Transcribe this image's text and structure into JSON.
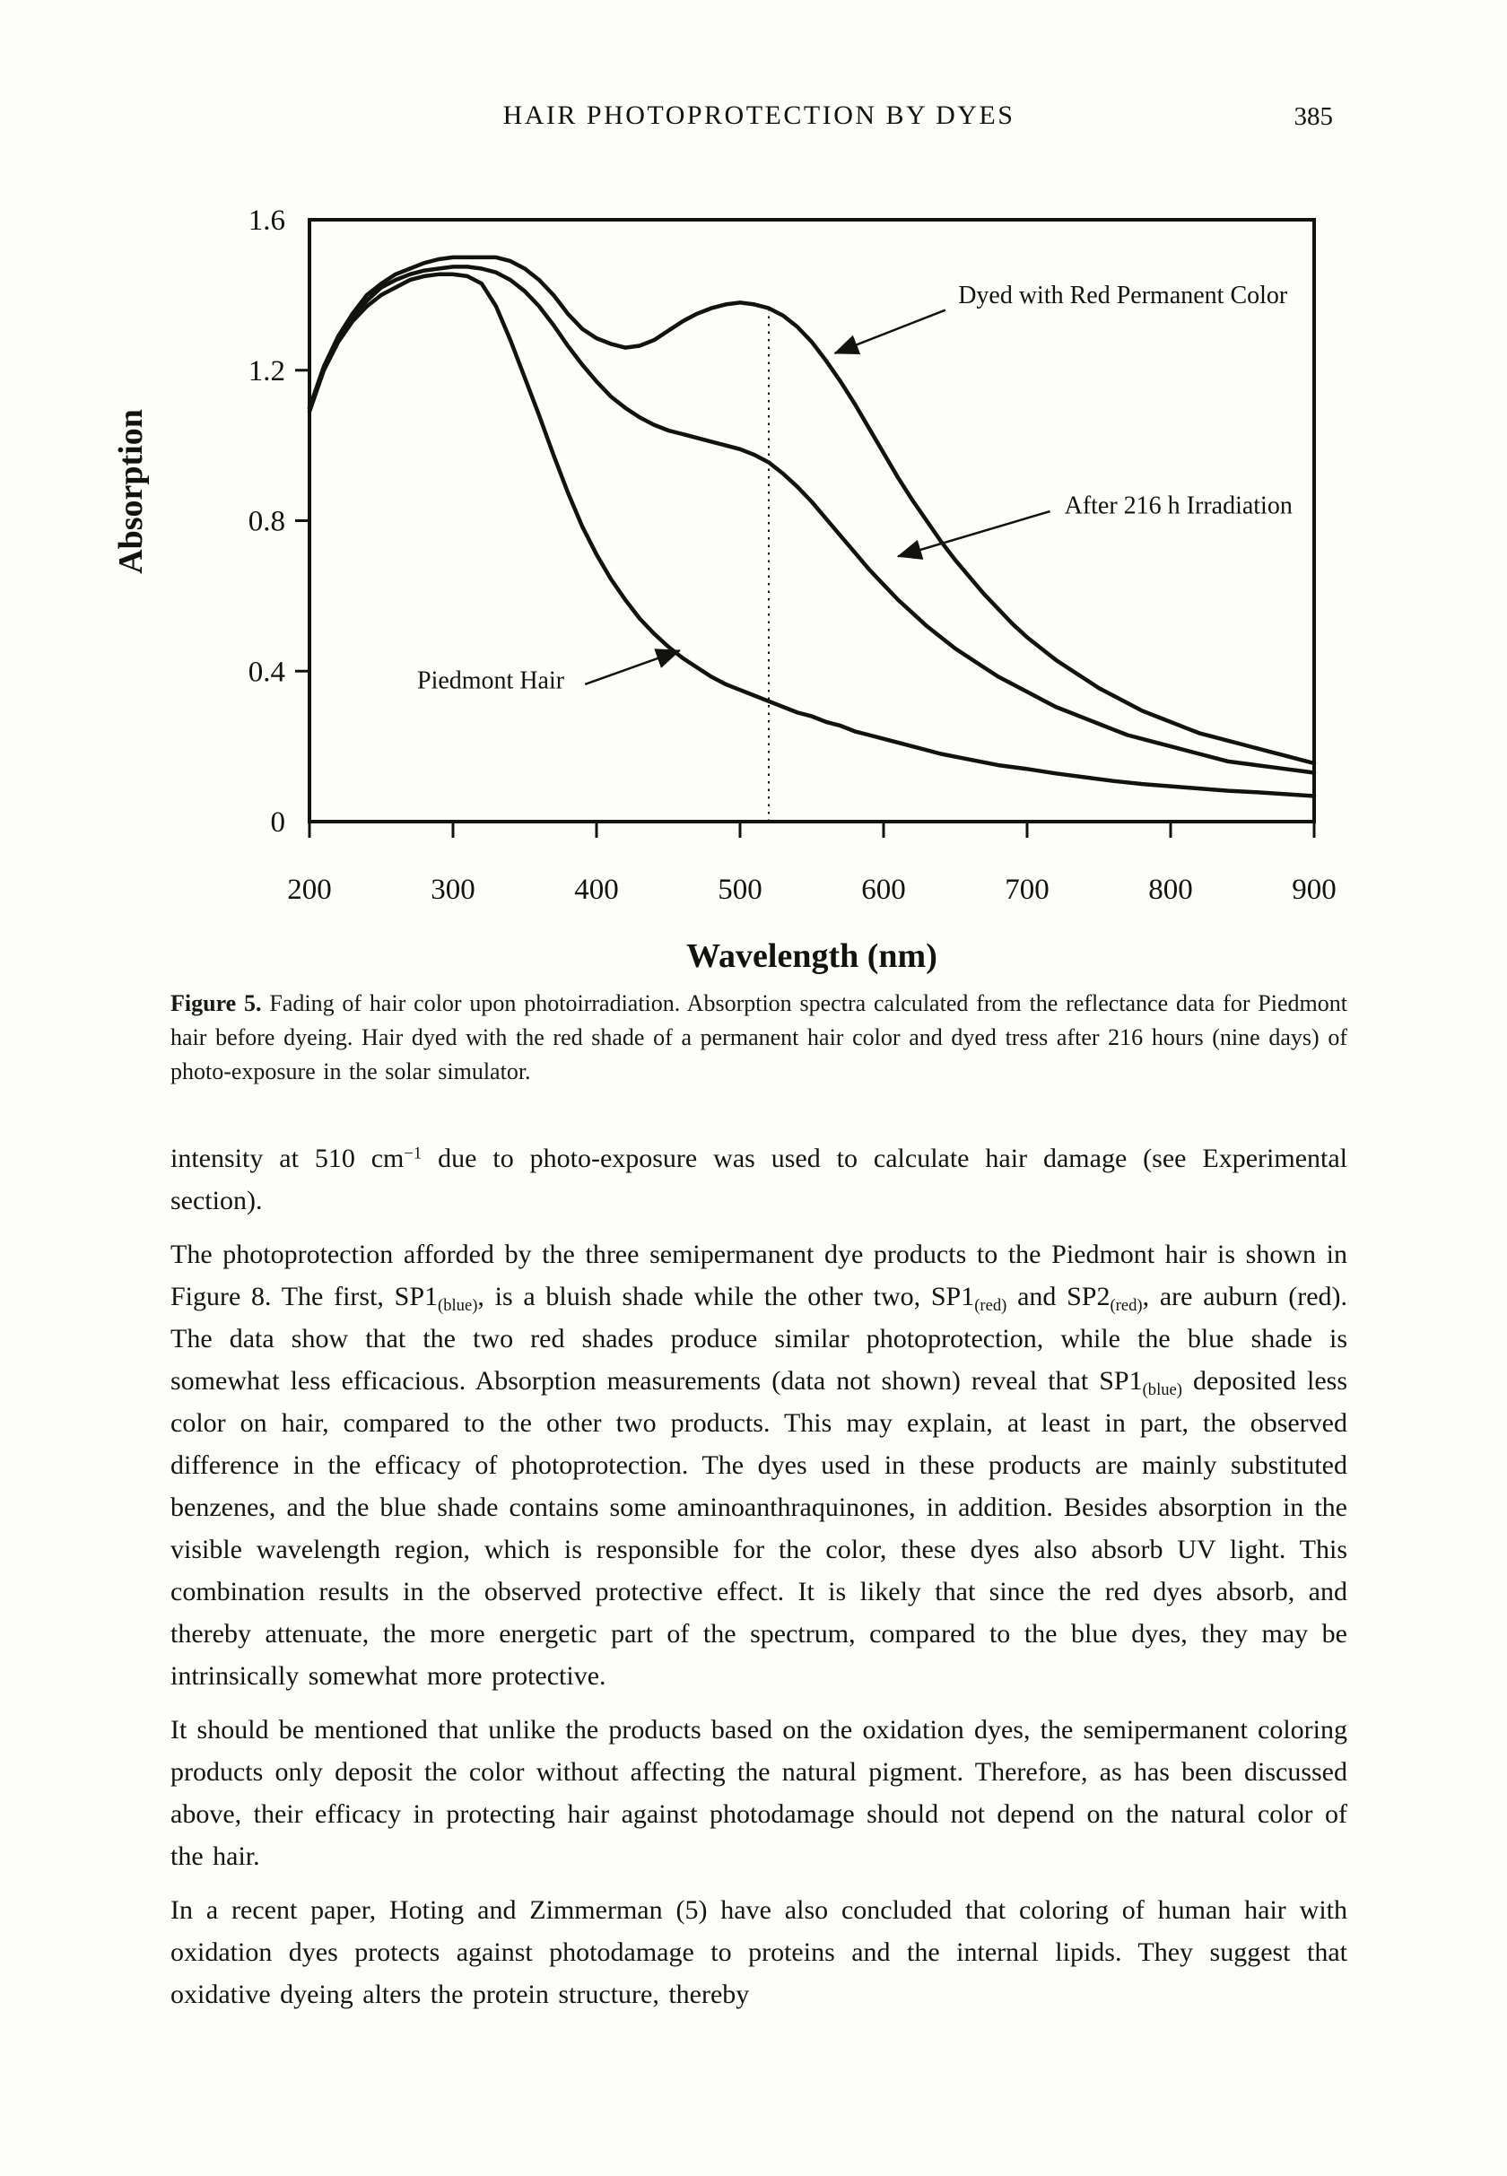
{
  "header": {
    "title": "HAIR PHOTOPROTECTION BY DYES",
    "page_number": "385"
  },
  "chart_data": {
    "type": "line",
    "title": "",
    "xlabel": "Wavelength (nm)",
    "ylabel": "Absorption",
    "xlim": [
      200,
      900
    ],
    "ylim": [
      0,
      1.6
    ],
    "xticks": [
      200,
      300,
      400,
      500,
      600,
      700,
      800,
      900
    ],
    "yticks": [
      0,
      0.4,
      0.8,
      1.2,
      1.6
    ],
    "ytick_labels": [
      "0",
      "0.4",
      "0.8",
      "1.2",
      "1.6"
    ],
    "grid": false,
    "legend_position": "none",
    "vline": {
      "x": 520,
      "y_bottom": 0,
      "y_top": 1.36,
      "style": "dotted"
    },
    "series": [
      {
        "name": "Dyed with Red Permanent Color",
        "points": [
          [
            200,
            1.1
          ],
          [
            210,
            1.21
          ],
          [
            220,
            1.29
          ],
          [
            230,
            1.35
          ],
          [
            240,
            1.4
          ],
          [
            250,
            1.43
          ],
          [
            260,
            1.455
          ],
          [
            270,
            1.47
          ],
          [
            280,
            1.485
          ],
          [
            290,
            1.495
          ],
          [
            300,
            1.5
          ],
          [
            310,
            1.5
          ],
          [
            320,
            1.5
          ],
          [
            330,
            1.5
          ],
          [
            340,
            1.49
          ],
          [
            350,
            1.47
          ],
          [
            360,
            1.44
          ],
          [
            370,
            1.4
          ],
          [
            380,
            1.35
          ],
          [
            390,
            1.31
          ],
          [
            400,
            1.285
          ],
          [
            410,
            1.27
          ],
          [
            420,
            1.26
          ],
          [
            430,
            1.265
          ],
          [
            440,
            1.28
          ],
          [
            450,
            1.305
          ],
          [
            460,
            1.33
          ],
          [
            470,
            1.35
          ],
          [
            480,
            1.365
          ],
          [
            490,
            1.375
          ],
          [
            500,
            1.38
          ],
          [
            510,
            1.375
          ],
          [
            520,
            1.365
          ],
          [
            530,
            1.345
          ],
          [
            540,
            1.315
          ],
          [
            550,
            1.275
          ],
          [
            560,
            1.225
          ],
          [
            570,
            1.17
          ],
          [
            580,
            1.11
          ],
          [
            590,
            1.045
          ],
          [
            600,
            0.98
          ],
          [
            610,
            0.915
          ],
          [
            620,
            0.855
          ],
          [
            630,
            0.8
          ],
          [
            640,
            0.745
          ],
          [
            650,
            0.695
          ],
          [
            660,
            0.65
          ],
          [
            670,
            0.605
          ],
          [
            680,
            0.565
          ],
          [
            690,
            0.525
          ],
          [
            700,
            0.49
          ],
          [
            710,
            0.46
          ],
          [
            720,
            0.43
          ],
          [
            730,
            0.405
          ],
          [
            740,
            0.38
          ],
          [
            750,
            0.355
          ],
          [
            760,
            0.335
          ],
          [
            770,
            0.315
          ],
          [
            780,
            0.295
          ],
          [
            790,
            0.28
          ],
          [
            800,
            0.265
          ],
          [
            810,
            0.25
          ],
          [
            820,
            0.235
          ],
          [
            830,
            0.225
          ],
          [
            840,
            0.215
          ],
          [
            850,
            0.205
          ],
          [
            860,
            0.195
          ],
          [
            870,
            0.185
          ],
          [
            880,
            0.175
          ],
          [
            890,
            0.165
          ],
          [
            900,
            0.155
          ]
        ]
      },
      {
        "name": "After 216 h Irradiation",
        "points": [
          [
            200,
            1.09
          ],
          [
            210,
            1.2
          ],
          [
            220,
            1.28
          ],
          [
            230,
            1.34
          ],
          [
            240,
            1.385
          ],
          [
            250,
            1.42
          ],
          [
            260,
            1.44
          ],
          [
            270,
            1.455
          ],
          [
            280,
            1.465
          ],
          [
            290,
            1.47
          ],
          [
            300,
            1.475
          ],
          [
            310,
            1.475
          ],
          [
            320,
            1.47
          ],
          [
            330,
            1.46
          ],
          [
            340,
            1.44
          ],
          [
            350,
            1.41
          ],
          [
            360,
            1.37
          ],
          [
            370,
            1.32
          ],
          [
            380,
            1.265
          ],
          [
            390,
            1.215
          ],
          [
            400,
            1.17
          ],
          [
            410,
            1.13
          ],
          [
            420,
            1.1
          ],
          [
            430,
            1.075
          ],
          [
            440,
            1.055
          ],
          [
            450,
            1.04
          ],
          [
            460,
            1.03
          ],
          [
            470,
            1.02
          ],
          [
            480,
            1.01
          ],
          [
            490,
            1.0
          ],
          [
            500,
            0.99
          ],
          [
            510,
            0.975
          ],
          [
            520,
            0.955
          ],
          [
            530,
            0.925
          ],
          [
            540,
            0.89
          ],
          [
            550,
            0.85
          ],
          [
            560,
            0.805
          ],
          [
            570,
            0.76
          ],
          [
            580,
            0.715
          ],
          [
            590,
            0.67
          ],
          [
            600,
            0.63
          ],
          [
            610,
            0.59
          ],
          [
            620,
            0.555
          ],
          [
            630,
            0.52
          ],
          [
            640,
            0.49
          ],
          [
            650,
            0.46
          ],
          [
            660,
            0.435
          ],
          [
            670,
            0.41
          ],
          [
            680,
            0.385
          ],
          [
            690,
            0.365
          ],
          [
            700,
            0.345
          ],
          [
            710,
            0.325
          ],
          [
            720,
            0.305
          ],
          [
            730,
            0.29
          ],
          [
            740,
            0.275
          ],
          [
            750,
            0.26
          ],
          [
            760,
            0.245
          ],
          [
            770,
            0.23
          ],
          [
            780,
            0.22
          ],
          [
            790,
            0.21
          ],
          [
            800,
            0.2
          ],
          [
            810,
            0.19
          ],
          [
            820,
            0.18
          ],
          [
            830,
            0.17
          ],
          [
            840,
            0.16
          ],
          [
            850,
            0.155
          ],
          [
            860,
            0.15
          ],
          [
            870,
            0.145
          ],
          [
            880,
            0.14
          ],
          [
            890,
            0.135
          ],
          [
            900,
            0.13
          ]
        ]
      },
      {
        "name": "Piedmont Hair",
        "points": [
          [
            200,
            1.1
          ],
          [
            210,
            1.2
          ],
          [
            220,
            1.275
          ],
          [
            230,
            1.33
          ],
          [
            240,
            1.37
          ],
          [
            250,
            1.4
          ],
          [
            260,
            1.42
          ],
          [
            270,
            1.44
          ],
          [
            280,
            1.45
          ],
          [
            290,
            1.455
          ],
          [
            300,
            1.455
          ],
          [
            310,
            1.45
          ],
          [
            320,
            1.43
          ],
          [
            330,
            1.37
          ],
          [
            340,
            1.28
          ],
          [
            350,
            1.18
          ],
          [
            360,
            1.08
          ],
          [
            370,
            0.975
          ],
          [
            380,
            0.875
          ],
          [
            390,
            0.785
          ],
          [
            400,
            0.71
          ],
          [
            410,
            0.645
          ],
          [
            420,
            0.59
          ],
          [
            430,
            0.54
          ],
          [
            440,
            0.5
          ],
          [
            450,
            0.465
          ],
          [
            460,
            0.435
          ],
          [
            470,
            0.41
          ],
          [
            480,
            0.385
          ],
          [
            490,
            0.365
          ],
          [
            500,
            0.35
          ],
          [
            510,
            0.335
          ],
          [
            520,
            0.32
          ],
          [
            530,
            0.305
          ],
          [
            540,
            0.29
          ],
          [
            550,
            0.28
          ],
          [
            560,
            0.265
          ],
          [
            570,
            0.255
          ],
          [
            580,
            0.24
          ],
          [
            590,
            0.23
          ],
          [
            600,
            0.22
          ],
          [
            620,
            0.2
          ],
          [
            640,
            0.18
          ],
          [
            660,
            0.165
          ],
          [
            680,
            0.15
          ],
          [
            700,
            0.14
          ],
          [
            720,
            0.128
          ],
          [
            740,
            0.118
          ],
          [
            760,
            0.108
          ],
          [
            780,
            0.1
          ],
          [
            800,
            0.094
          ],
          [
            820,
            0.088
          ],
          [
            840,
            0.082
          ],
          [
            860,
            0.078
          ],
          [
            880,
            0.073
          ],
          [
            900,
            0.068
          ]
        ]
      }
    ],
    "annotations": [
      {
        "label": "Dyed with Red Permanent Color",
        "label_at": [
          652,
          1.4
        ],
        "arrow_from": [
          643,
          1.36
        ],
        "arrow_to": [
          566,
          1.245
        ]
      },
      {
        "label": "After 216 h Irradiation",
        "label_at": [
          726,
          0.84
        ],
        "arrow_from": [
          716,
          0.825
        ],
        "arrow_to": [
          610,
          0.705
        ]
      },
      {
        "label": "Piedmont Hair",
        "label_at": [
          275,
          0.375
        ],
        "arrow_from": [
          392,
          0.365
        ],
        "arrow_to": [
          458,
          0.455
        ]
      }
    ]
  },
  "caption": {
    "label": "Figure 5.",
    "text": " Fading of hair color upon photoirradiation. Absorption spectra calculated from the reflectance data for Piedmont hair before dyeing. Hair dyed with the red shade of a permanent hair color and dyed tress after 216 hours (nine days) of photo-exposure in the solar simulator."
  },
  "body": {
    "paragraphs": [
      "intensity at 510 cm^−1^ due to photo-exposure was used to calculate hair damage (see Experimental section).",
      "The photoprotection afforded by the three semipermanent dye products to the Piedmont hair is shown in Figure 8. The first, SP1~(blue)~, is a bluish shade while the other two, SP1~(red)~ and SP2~(red)~, are auburn (red). The data show that the two red shades produce similar photoprotection, while the blue shade is somewhat less efficacious. Absorption measurements (data not shown) reveal that SP1~(blue)~ deposited less color on hair, compared to the other two products. This may explain, at least in part, the observed difference in the efficacy of photoprotection. The dyes used in these products are mainly substituted benzenes, and the blue shade contains some aminoanthraquinones, in addition. Besides absorption in the visible wavelength region, which is responsible for the color, these dyes also absorb UV light. This combination results in the observed protective effect. It is likely that since the red dyes absorb, and thereby attenuate, the more energetic part of the spectrum, compared to the blue dyes, they may be intrinsically somewhat more protective.",
      "It should be mentioned that unlike the products based on the oxidation dyes, the semipermanent coloring products only deposit the color without affecting the natural pigment. Therefore, as has been discussed above, their efficacy in protecting hair against photodamage should not depend on the natural color of the hair.",
      "In a recent paper, Hoting and Zimmerman (5) have also concluded that coloring of human hair with oxidation dyes protects against photodamage to proteins and the internal lipids. They suggest that oxidative dyeing alters the protein structure, thereby"
    ]
  },
  "colors": {
    "ink": "#141210",
    "paper": "#fdfdfb"
  }
}
